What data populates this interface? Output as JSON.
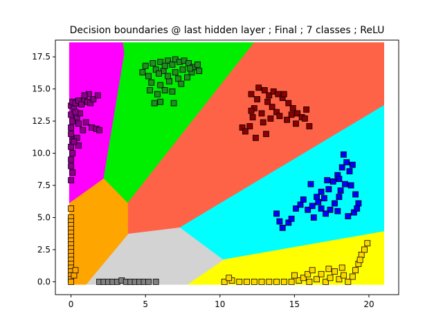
{
  "chart_data": {
    "type": "scatter",
    "title": "Decision boundaries @ last hidden layer ; Final ; 7 classes ; ReLU",
    "xlabel": "",
    "ylabel": "",
    "xlim": [
      -1.05,
      22.0
    ],
    "ylim": [
      -1.0,
      18.8
    ],
    "x_ticks": [
      0,
      5,
      10,
      15,
      20
    ],
    "y_ticks": [
      0.0,
      2.5,
      5.0,
      7.5,
      10.0,
      12.5,
      15.0,
      17.5
    ],
    "x_tick_labels": [
      "0",
      "5",
      "10",
      "15",
      "20"
    ],
    "y_tick_labels": [
      "0.0",
      "2.5",
      "5.0",
      "7.5",
      "10.0",
      "12.5",
      "15.0",
      "17.5"
    ],
    "grid": false,
    "legend": "none",
    "regions": [
      {
        "color": "#ff00ff",
        "polygon": [
          [
            -0.1,
            18.6
          ],
          [
            3.5,
            18.6
          ],
          [
            3.6,
            17.8
          ],
          [
            2.2,
            8.0
          ],
          [
            -0.1,
            6.1
          ]
        ]
      },
      {
        "color": "#00ee00",
        "polygon": [
          [
            3.5,
            18.6
          ],
          [
            12.3,
            18.6
          ],
          [
            3.8,
            6.1
          ],
          [
            2.2,
            8.0
          ],
          [
            3.6,
            17.8
          ]
        ]
      },
      {
        "color": "#ff6347",
        "polygon": [
          [
            12.3,
            18.6
          ],
          [
            21.0,
            18.6
          ],
          [
            21.0,
            13.7
          ],
          [
            7.3,
            4.2
          ],
          [
            3.8,
            3.7
          ],
          [
            3.8,
            6.1
          ]
        ]
      },
      {
        "color": "#00ffff",
        "polygon": [
          [
            21.0,
            13.7
          ],
          [
            21.0,
            3.9
          ],
          [
            10.2,
            1.7
          ],
          [
            7.3,
            4.2
          ]
        ]
      },
      {
        "color": "#ffff00",
        "polygon": [
          [
            21.0,
            3.9
          ],
          [
            21.0,
            -0.2
          ],
          [
            7.8,
            -0.2
          ],
          [
            10.2,
            1.7
          ]
        ]
      },
      {
        "color": "#d3d3d3",
        "polygon": [
          [
            1.0,
            -0.2
          ],
          [
            7.8,
            -0.2
          ],
          [
            10.2,
            1.7
          ],
          [
            7.3,
            4.2
          ],
          [
            3.8,
            3.7
          ]
        ]
      },
      {
        "color": "#ffa500",
        "polygon": [
          [
            -0.1,
            6.1
          ],
          [
            2.2,
            8.0
          ],
          [
            3.8,
            6.1
          ],
          [
            3.8,
            3.7
          ],
          [
            1.0,
            -0.2
          ],
          [
            -0.1,
            -0.2
          ]
        ]
      }
    ],
    "series": [
      {
        "color": "#8b008b",
        "points": [
          [
            0.0,
            13.7
          ],
          [
            0.1,
            14.0
          ],
          [
            0.2,
            13.5
          ],
          [
            0.3,
            13.9
          ],
          [
            0.5,
            14.1
          ],
          [
            0.7,
            13.8
          ],
          [
            0.9,
            14.2
          ],
          [
            1.1,
            14.0
          ],
          [
            1.3,
            13.9
          ],
          [
            1.5,
            14.2
          ],
          [
            1.2,
            14.6
          ],
          [
            1.8,
            14.5
          ],
          [
            0.9,
            14.5
          ],
          [
            0.0,
            13.0
          ],
          [
            0.1,
            12.5
          ],
          [
            0.0,
            12.0
          ],
          [
            0.0,
            11.5
          ],
          [
            0.1,
            11.0
          ],
          [
            0.0,
            10.5
          ],
          [
            0.1,
            10.0
          ],
          [
            0.0,
            9.5
          ],
          [
            0.0,
            9.0
          ],
          [
            0.1,
            8.5
          ],
          [
            0.0,
            7.9
          ],
          [
            0.4,
            12.8
          ],
          [
            0.5,
            12.3
          ],
          [
            0.8,
            11.8
          ],
          [
            0.4,
            11.2
          ],
          [
            0.5,
            10.6
          ],
          [
            1.0,
            12.4
          ],
          [
            1.4,
            12.0
          ],
          [
            1.7,
            11.9
          ],
          [
            1.9,
            11.8
          ],
          [
            0.6,
            13.1
          ],
          [
            0.3,
            13.2
          ],
          [
            0.2,
            10.9
          ]
        ]
      },
      {
        "color": "#228b22",
        "points": [
          [
            4.8,
            16.3
          ],
          [
            5.0,
            16.8
          ],
          [
            5.2,
            16.0
          ],
          [
            5.5,
            17.0
          ],
          [
            5.7,
            16.5
          ],
          [
            5.4,
            15.5
          ],
          [
            6.0,
            17.1
          ],
          [
            6.2,
            16.4
          ],
          [
            6.5,
            17.2
          ],
          [
            6.8,
            16.9
          ],
          [
            7.0,
            17.3
          ],
          [
            7.3,
            17.1
          ],
          [
            7.6,
            17.2
          ],
          [
            7.9,
            17.0
          ],
          [
            8.2,
            16.7
          ],
          [
            8.5,
            16.9
          ],
          [
            8.1,
            16.3
          ],
          [
            7.8,
            15.9
          ],
          [
            7.2,
            15.8
          ],
          [
            6.6,
            15.6
          ],
          [
            6.0,
            15.3
          ],
          [
            5.8,
            14.6
          ],
          [
            6.3,
            14.9
          ],
          [
            6.0,
            14.0
          ],
          [
            5.6,
            13.9
          ],
          [
            6.8,
            14.8
          ],
          [
            7.0,
            16.3
          ],
          [
            7.5,
            16.5
          ],
          [
            6.5,
            16.0
          ],
          [
            5.3,
            14.9
          ],
          [
            5.9,
            16.2
          ],
          [
            6.9,
            13.9
          ],
          [
            7.4,
            15.4
          ],
          [
            8.6,
            16.4
          ],
          [
            8.0,
            16.6
          ],
          [
            6.3,
            16.8
          ]
        ]
      },
      {
        "color": "#8b0000",
        "points": [
          [
            11.5,
            12.0
          ],
          [
            11.7,
            11.7
          ],
          [
            12.0,
            12.1
          ],
          [
            12.2,
            12.8
          ],
          [
            12.3,
            13.5
          ],
          [
            12.5,
            14.2
          ],
          [
            12.1,
            14.6
          ],
          [
            12.6,
            15.1
          ],
          [
            13.0,
            14.9
          ],
          [
            13.3,
            14.5
          ],
          [
            13.6,
            14.8
          ],
          [
            13.9,
            14.6
          ],
          [
            14.2,
            14.3
          ],
          [
            14.6,
            13.9
          ],
          [
            14.9,
            13.5
          ],
          [
            15.2,
            13.1
          ],
          [
            15.5,
            12.8
          ],
          [
            15.8,
            13.4
          ],
          [
            15.1,
            12.3
          ],
          [
            14.5,
            12.6
          ],
          [
            13.8,
            13.2
          ],
          [
            13.4,
            12.7
          ],
          [
            12.9,
            12.4
          ],
          [
            13.1,
            11.5
          ],
          [
            12.4,
            11.2
          ],
          [
            12.1,
            13.3
          ],
          [
            13.5,
            13.6
          ],
          [
            14.0,
            12.9
          ],
          [
            16.0,
            12.1
          ],
          [
            15.7,
            12.7
          ],
          [
            14.8,
            13.0
          ],
          [
            13.2,
            14.0
          ],
          [
            12.8,
            13.1
          ],
          [
            14.3,
            14.6
          ]
        ]
      },
      {
        "color": "#0000ff",
        "points": [
          [
            13.8,
            5.3
          ],
          [
            14.0,
            4.7
          ],
          [
            14.2,
            4.2
          ],
          [
            14.6,
            4.6
          ],
          [
            14.8,
            4.9
          ],
          [
            15.1,
            5.7
          ],
          [
            15.4,
            6.0
          ],
          [
            15.6,
            6.4
          ],
          [
            15.9,
            5.6
          ],
          [
            16.2,
            5.9
          ],
          [
            16.5,
            6.6
          ],
          [
            16.8,
            7.0
          ],
          [
            17.0,
            6.5
          ],
          [
            17.3,
            7.2
          ],
          [
            17.6,
            7.8
          ],
          [
            17.9,
            8.3
          ],
          [
            18.2,
            8.9
          ],
          [
            18.5,
            9.3
          ],
          [
            18.7,
            8.6
          ],
          [
            18.4,
            7.6
          ],
          [
            18.1,
            7.1
          ],
          [
            17.7,
            6.1
          ],
          [
            17.4,
            5.6
          ],
          [
            17.1,
            5.3
          ],
          [
            16.8,
            5.7
          ],
          [
            18.8,
            7.5
          ],
          [
            19.1,
            6.8
          ],
          [
            19.3,
            6.1
          ],
          [
            19.0,
            5.4
          ],
          [
            18.6,
            5.1
          ],
          [
            17.9,
            5.5
          ],
          [
            16.1,
            7.6
          ],
          [
            16.3,
            5.0
          ],
          [
            18.3,
            9.9
          ],
          [
            18.9,
            9.1
          ],
          [
            17.2,
            7.9
          ],
          [
            18.0,
            6.6
          ],
          [
            16.6,
            6.2
          ],
          [
            19.2,
            5.7
          ],
          [
            18.0,
            8.0
          ]
        ]
      },
      {
        "color": "#ffd700",
        "points": [
          [
            10.3,
            0.0
          ],
          [
            10.8,
            0.1
          ],
          [
            11.3,
            0.0
          ],
          [
            11.8,
            0.0
          ],
          [
            12.3,
            0.0
          ],
          [
            12.8,
            0.0
          ],
          [
            13.3,
            0.0
          ],
          [
            13.8,
            0.0
          ],
          [
            14.3,
            0.0
          ],
          [
            14.8,
            0.0
          ],
          [
            15.3,
            0.1
          ],
          [
            15.6,
            0.3
          ],
          [
            15.9,
            0.6
          ],
          [
            16.2,
            0.9
          ],
          [
            16.5,
            0.2
          ],
          [
            16.8,
            0.6
          ],
          [
            17.1,
            0.0
          ],
          [
            17.4,
            0.3
          ],
          [
            17.7,
            0.8
          ],
          [
            18.0,
            0.2
          ],
          [
            18.3,
            0.5
          ],
          [
            18.6,
            0.0
          ],
          [
            18.9,
            0.4
          ],
          [
            19.1,
            0.9
          ],
          [
            19.3,
            1.4
          ],
          [
            19.5,
            2.1
          ],
          [
            19.7,
            2.5
          ],
          [
            19.9,
            3.0
          ],
          [
            16.0,
            0.0
          ],
          [
            17.3,
            1.0
          ],
          [
            18.2,
            1.1
          ],
          [
            10.6,
            0.3
          ],
          [
            15.0,
            0.5
          ],
          [
            19.4,
            1.7
          ]
        ]
      },
      {
        "color": "#808080",
        "points": [
          [
            1.9,
            0.0
          ],
          [
            2.2,
            0.0
          ],
          [
            2.5,
            0.0
          ],
          [
            2.8,
            0.0
          ],
          [
            3.1,
            0.0
          ],
          [
            3.4,
            0.1
          ],
          [
            3.7,
            0.0
          ],
          [
            4.0,
            0.0
          ],
          [
            4.3,
            0.0
          ],
          [
            4.6,
            0.0
          ],
          [
            4.9,
            0.0
          ],
          [
            5.2,
            0.0
          ],
          [
            5.7,
            0.0
          ]
        ]
      },
      {
        "color": "#ffa500",
        "points": [
          [
            0.0,
            5.7
          ],
          [
            0.0,
            5.0
          ],
          [
            0.0,
            4.7
          ],
          [
            0.0,
            4.4
          ],
          [
            0.0,
            4.1
          ],
          [
            0.0,
            3.8
          ],
          [
            0.0,
            3.5
          ],
          [
            0.0,
            3.2
          ],
          [
            0.0,
            2.9
          ],
          [
            0.0,
            2.6
          ],
          [
            0.0,
            2.3
          ],
          [
            0.0,
            2.0
          ],
          [
            0.0,
            1.7
          ],
          [
            0.0,
            1.4
          ],
          [
            0.0,
            1.1
          ],
          [
            0.0,
            0.8
          ],
          [
            0.0,
            0.5
          ],
          [
            0.0,
            0.2
          ],
          [
            0.0,
            0.0
          ],
          [
            0.2,
            0.5
          ],
          [
            0.3,
            0.9
          ]
        ]
      }
    ]
  }
}
